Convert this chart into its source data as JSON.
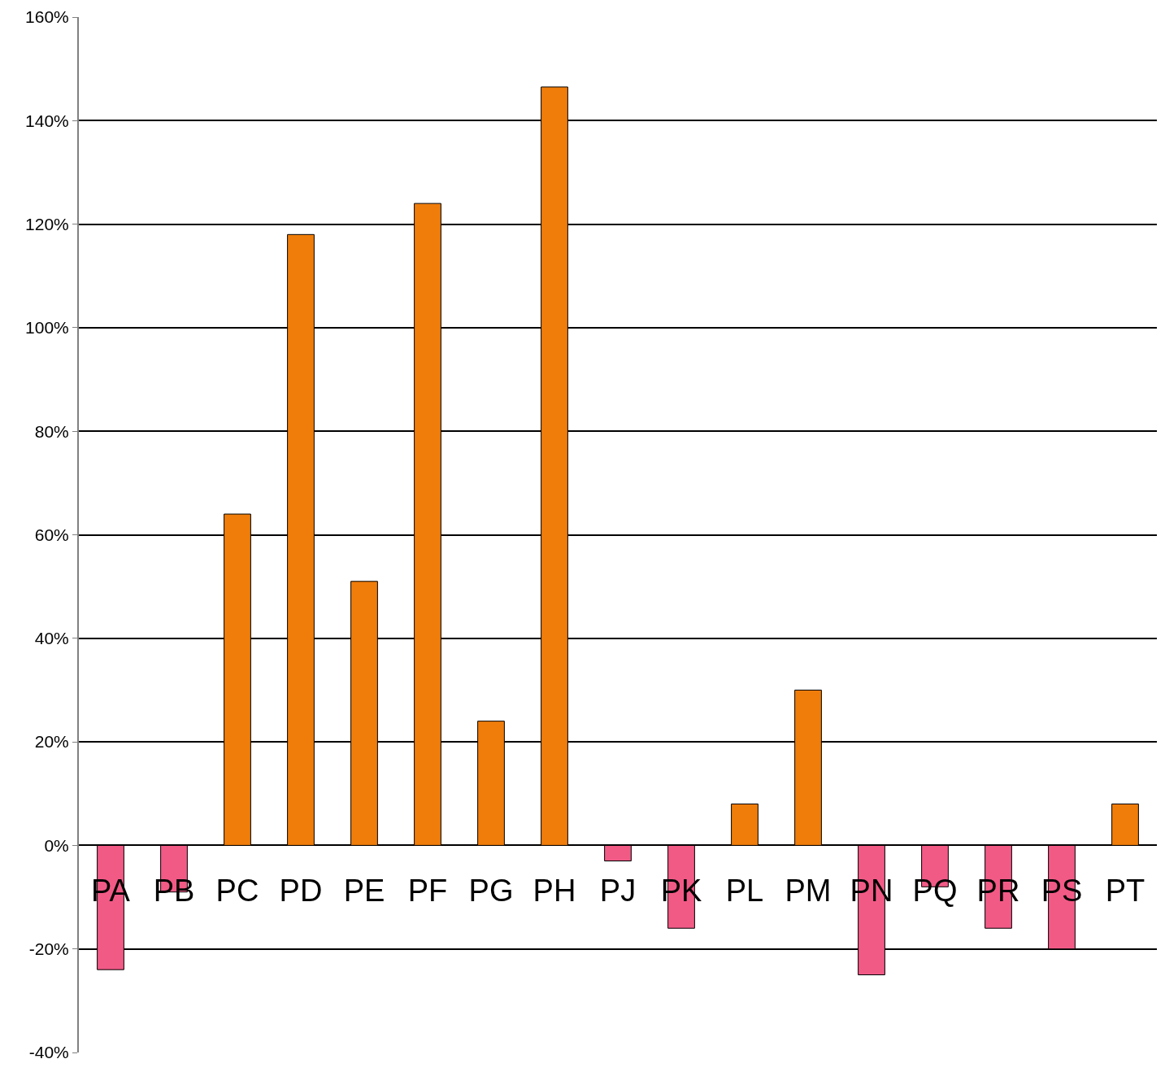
{
  "chart_data": {
    "type": "bar",
    "categories": [
      "PA",
      "PB",
      "PC",
      "PD",
      "PE",
      "PF",
      "PG",
      "PH",
      "PJ",
      "PK",
      "PL",
      "PM",
      "PN",
      "PQ",
      "PR",
      "PS",
      "PT"
    ],
    "values": [
      -24,
      -9,
      64,
      118,
      51,
      124,
      24,
      146.5,
      -3,
      -16,
      8,
      30,
      -25,
      -8,
      -16,
      -20,
      8
    ],
    "colors": [
      "#f25a86",
      "#f25a86",
      "#f07d0a",
      "#f07d0a",
      "#f07d0a",
      "#f07d0a",
      "#f07d0a",
      "#f07d0a",
      "#f25a86",
      "#f25a86",
      "#f07d0a",
      "#f07d0a",
      "#f25a86",
      "#f25a86",
      "#f25a86",
      "#f25a86",
      "#f07d0a"
    ],
    "ylim": [
      -40,
      160
    ],
    "yticks": [
      {
        "value": -40,
        "label": "-40%"
      },
      {
        "value": -20,
        "label": "-20%"
      },
      {
        "value": 0,
        "label": "0%"
      },
      {
        "value": 20,
        "label": "20%"
      },
      {
        "value": 40,
        "label": "40%"
      },
      {
        "value": 60,
        "label": "60%"
      },
      {
        "value": 80,
        "label": "80%"
      },
      {
        "value": 100,
        "label": "100%"
      },
      {
        "value": 120,
        "label": "120%"
      },
      {
        "value": 140,
        "label": "140%"
      },
      {
        "value": 160,
        "label": "160%"
      }
    ],
    "grid": "y"
  }
}
